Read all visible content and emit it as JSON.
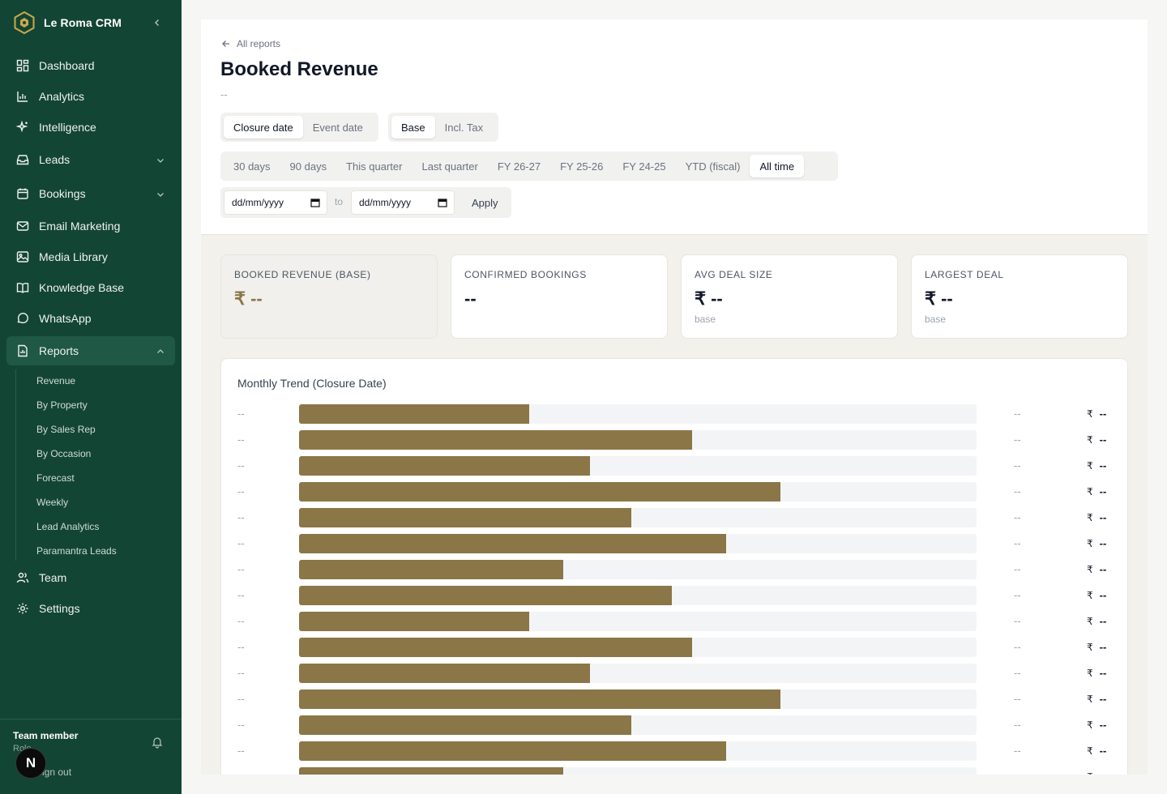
{
  "app": {
    "name": "Le Roma CRM"
  },
  "nav": [
    {
      "key": "dashboard",
      "label": "Dashboard",
      "icon": "dashboard-icon"
    },
    {
      "key": "analytics",
      "label": "Analytics",
      "icon": "bar-chart-icon"
    },
    {
      "key": "intelligence",
      "label": "Intelligence",
      "icon": "sparkles-icon"
    },
    {
      "key": "leads",
      "label": "Leads",
      "icon": "inbox-icon",
      "expandable": true
    },
    {
      "key": "bookings",
      "label": "Bookings",
      "icon": "calendar-icon",
      "expandable": true
    },
    {
      "key": "email",
      "label": "Email Marketing",
      "icon": "mail-icon"
    },
    {
      "key": "media",
      "label": "Media Library",
      "icon": "image-icon"
    },
    {
      "key": "kb",
      "label": "Knowledge Base",
      "icon": "book-icon"
    },
    {
      "key": "whatsapp",
      "label": "WhatsApp",
      "icon": "chat-icon"
    },
    {
      "key": "reports",
      "label": "Reports",
      "icon": "report-icon",
      "expandable": true,
      "active": true
    },
    {
      "key": "team",
      "label": "Team",
      "icon": "users-icon"
    },
    {
      "key": "settings",
      "label": "Settings",
      "icon": "gear-icon"
    }
  ],
  "reports_sub": [
    "Revenue",
    "By Property",
    "By Sales Rep",
    "By Occasion",
    "Forecast",
    "Weekly",
    "Lead Analytics",
    "Paramantra Leads"
  ],
  "user": {
    "name": "Team member",
    "role": "Role",
    "signout": "Sign out",
    "avatar_letter": "N"
  },
  "page": {
    "back_label": "All reports",
    "title": "Booked Revenue",
    "subtitle": "--"
  },
  "filters": {
    "date_basis": {
      "options": [
        "Closure date",
        "Event date"
      ],
      "selected": "Closure date"
    },
    "amount_basis": {
      "options": [
        "Base",
        "Incl. Tax"
      ],
      "selected": "Base"
    },
    "ranges": {
      "options": [
        "30 days",
        "90 days",
        "This quarter",
        "Last quarter",
        "FY 26-27",
        "FY 25-26",
        "FY 24-25",
        "YTD (fiscal)",
        "All time"
      ],
      "selected": "All time"
    },
    "from_placeholder": "dd/mm/yyyy",
    "to_label": "to",
    "to_placeholder": "dd/mm/yyyy",
    "apply_label": "Apply"
  },
  "stats": [
    {
      "label": "Booked Revenue (Base)",
      "value": "₹ --",
      "note": ""
    },
    {
      "label": "Confirmed Bookings",
      "value": "--",
      "note": ""
    },
    {
      "label": "Avg Deal Size",
      "value": "₹ --",
      "note": "base"
    },
    {
      "label": "Largest Deal",
      "value": "₹ --",
      "note": "base"
    }
  ],
  "chart_data": {
    "type": "bar",
    "orientation": "horizontal",
    "title": "Monthly Trend (Closure Date)",
    "currency_symbol": "₹",
    "bar_color": "#8b7648",
    "rows": [
      {
        "label": "--",
        "count": "--",
        "amount": "--",
        "fill": 0.34
      },
      {
        "label": "--",
        "count": "--",
        "amount": "--",
        "fill": 0.58
      },
      {
        "label": "--",
        "count": "--",
        "amount": "--",
        "fill": 0.43
      },
      {
        "label": "--",
        "count": "--",
        "amount": "--",
        "fill": 0.71
      },
      {
        "label": "--",
        "count": "--",
        "amount": "--",
        "fill": 0.49
      },
      {
        "label": "--",
        "count": "--",
        "amount": "--",
        "fill": 0.63
      },
      {
        "label": "--",
        "count": "--",
        "amount": "--",
        "fill": 0.39
      },
      {
        "label": "--",
        "count": "--",
        "amount": "--",
        "fill": 0.55
      },
      {
        "label": "--",
        "count": "--",
        "amount": "--",
        "fill": 0.34
      },
      {
        "label": "--",
        "count": "--",
        "amount": "--",
        "fill": 0.58
      },
      {
        "label": "--",
        "count": "--",
        "amount": "--",
        "fill": 0.43
      },
      {
        "label": "--",
        "count": "--",
        "amount": "--",
        "fill": 0.71
      },
      {
        "label": "--",
        "count": "--",
        "amount": "--",
        "fill": 0.49
      },
      {
        "label": "--",
        "count": "--",
        "amount": "--",
        "fill": 0.63
      },
      {
        "label": "--",
        "count": "--",
        "amount": "--",
        "fill": 0.39
      }
    ]
  },
  "colors": {
    "sidebar": "#134534",
    "accent": "#8b7648"
  }
}
